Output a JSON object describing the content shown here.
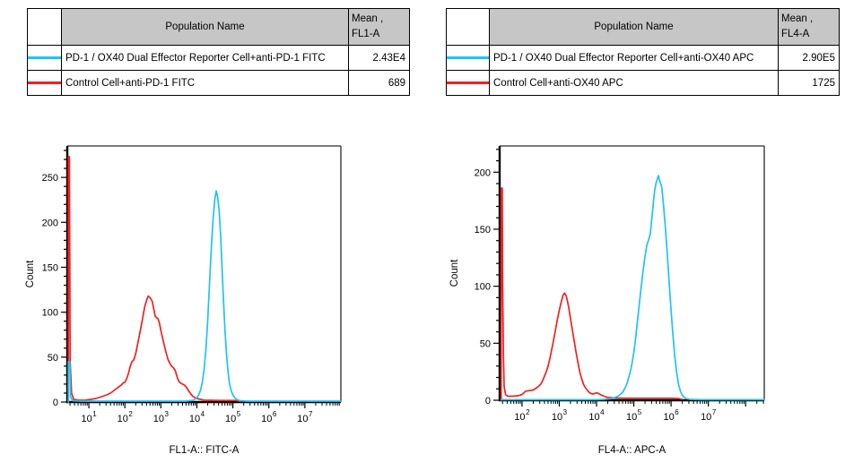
{
  "colors": {
    "reporter_series": "#1ec3f3",
    "control_series": "#f22020",
    "table_header_bg": "#c6c6c6",
    "axis": "#000000",
    "frame": "#2a2a2a"
  },
  "tables": [
    {
      "header": {
        "population": "Population Name",
        "mean_line1": "Mean ,",
        "mean_line2": "FL1-A"
      },
      "rows": [
        {
          "color": "#1ec3f3",
          "name": "PD-1 / OX40 Dual Effector Reporter Cell+anti-PD-1 FITC",
          "mean": "2.43E4"
        },
        {
          "color": "#f22020",
          "name": "Control Cell+anti-PD-1 FITC",
          "mean": "689"
        }
      ]
    },
    {
      "header": {
        "population": "Population Name",
        "mean_line1": "Mean ,",
        "mean_line2": "FL4-A"
      },
      "rows": [
        {
          "color": "#1ec3f3",
          "name": "PD-1 / OX40 Dual Effector Reporter Cell+anti-OX40 APC",
          "mean": "2.90E5"
        },
        {
          "color": "#f22020",
          "name": "Control Cell+anti-OX40 APC",
          "mean": "1725"
        }
      ]
    }
  ],
  "chart_data": [
    {
      "type": "line",
      "subtype": "flow-cytometry-histogram",
      "xlabel": "FL1-A:: FITC-A",
      "ylabel": "Count",
      "xscale": "log10",
      "xlim_log10": [
        0.4,
        8.0
      ],
      "ylim": [
        0,
        285
      ],
      "x_decade_labels": [
        1,
        2,
        3,
        4,
        5,
        6,
        7
      ],
      "yticks": [
        0,
        50,
        100,
        150,
        200,
        250
      ],
      "y_minor_step": 10,
      "grid": false,
      "legend": "table-above",
      "series": [
        {
          "name": "Control Cell+anti-PD-1 FITC",
          "color": "#f22020",
          "peak_log10x": 2.65,
          "peak_count": 118,
          "points_log10x_count": [
            [
              0.43,
              0
            ],
            [
              0.43,
              273
            ],
            [
              0.46,
              273
            ],
            [
              0.48,
              45
            ],
            [
              0.52,
              10
            ],
            [
              0.58,
              3
            ],
            [
              0.72,
              2
            ],
            [
              0.9,
              2
            ],
            [
              1.05,
              3
            ],
            [
              1.2,
              4
            ],
            [
              1.35,
              6
            ],
            [
              1.5,
              8
            ],
            [
              1.6,
              10
            ],
            [
              1.7,
              13
            ],
            [
              1.8,
              16
            ],
            [
              1.9,
              19
            ],
            [
              1.95,
              21
            ],
            [
              2.0,
              22
            ],
            [
              2.05,
              26
            ],
            [
              2.1,
              32
            ],
            [
              2.15,
              40
            ],
            [
              2.2,
              45
            ],
            [
              2.25,
              47
            ],
            [
              2.3,
              54
            ],
            [
              2.35,
              64
            ],
            [
              2.4,
              74
            ],
            [
              2.45,
              84
            ],
            [
              2.5,
              95
            ],
            [
              2.55,
              106
            ],
            [
              2.6,
              113
            ],
            [
              2.65,
              118
            ],
            [
              2.68,
              117
            ],
            [
              2.72,
              115
            ],
            [
              2.76,
              112
            ],
            [
              2.8,
              104
            ],
            [
              2.84,
              96
            ],
            [
              2.88,
              94
            ],
            [
              2.92,
              93
            ],
            [
              2.96,
              88
            ],
            [
              3.0,
              80
            ],
            [
              3.05,
              71
            ],
            [
              3.1,
              62
            ],
            [
              3.15,
              54
            ],
            [
              3.2,
              47
            ],
            [
              3.25,
              43
            ],
            [
              3.3,
              40
            ],
            [
              3.35,
              38
            ],
            [
              3.4,
              35
            ],
            [
              3.45,
              28
            ],
            [
              3.5,
              23
            ],
            [
              3.55,
              21
            ],
            [
              3.6,
              20
            ],
            [
              3.65,
              19
            ],
            [
              3.7,
              17
            ],
            [
              3.75,
              14
            ],
            [
              3.8,
              11
            ],
            [
              3.85,
              8
            ],
            [
              3.9,
              6
            ],
            [
              3.95,
              5
            ],
            [
              4.0,
              4
            ],
            [
              4.1,
              3
            ],
            [
              4.2,
              2.2
            ],
            [
              4.4,
              2
            ],
            [
              4.6,
              1.8
            ],
            [
              4.8,
              1.8
            ],
            [
              5.0,
              1.8
            ],
            [
              5.15,
              1.5
            ],
            [
              5.2,
              0.8
            ]
          ]
        },
        {
          "name": "PD-1 / OX40 Dual Effector Reporter Cell+anti-PD-1 FITC",
          "color": "#1ec3f3",
          "peak_log10x": 4.54,
          "peak_count": 235,
          "points_log10x_count": [
            [
              0.43,
              0
            ],
            [
              0.43,
              45
            ],
            [
              0.47,
              45
            ],
            [
              0.49,
              6
            ],
            [
              0.55,
              1.5
            ],
            [
              0.8,
              1
            ],
            [
              1.5,
              1
            ],
            [
              2.5,
              1
            ],
            [
              3.4,
              1
            ],
            [
              3.7,
              1
            ],
            [
              3.8,
              1.5
            ],
            [
              3.9,
              2
            ],
            [
              4.0,
              5
            ],
            [
              4.05,
              8
            ],
            [
              4.1,
              13
            ],
            [
              4.15,
              22
            ],
            [
              4.2,
              36
            ],
            [
              4.25,
              58
            ],
            [
              4.3,
              90
            ],
            [
              4.35,
              130
            ],
            [
              4.4,
              170
            ],
            [
              4.45,
              203
            ],
            [
              4.5,
              226
            ],
            [
              4.54,
              235
            ],
            [
              4.58,
              228
            ],
            [
              4.62,
              212
            ],
            [
              4.66,
              185
            ],
            [
              4.7,
              148
            ],
            [
              4.74,
              112
            ],
            [
              4.78,
              80
            ],
            [
              4.82,
              55
            ],
            [
              4.86,
              36
            ],
            [
              4.9,
              22
            ],
            [
              4.95,
              13
            ],
            [
              5.0,
              8
            ],
            [
              5.05,
              5
            ],
            [
              5.1,
              3
            ],
            [
              5.2,
              1.5
            ],
            [
              5.4,
              1
            ],
            [
              6.0,
              1
            ],
            [
              7.0,
              1
            ],
            [
              8.0,
              1
            ]
          ]
        }
      ]
    },
    {
      "type": "line",
      "subtype": "flow-cytometry-histogram",
      "xlabel": "FL4-A:: APC-A",
      "ylabel": "Count",
      "xscale": "log10",
      "xlim_log10": [
        1.4,
        8.5
      ],
      "ylim": [
        0,
        223
      ],
      "x_decade_labels": [
        2,
        3,
        4,
        5,
        6,
        7
      ],
      "yticks": [
        0,
        50,
        100,
        150,
        200
      ],
      "y_minor_step": 10,
      "grid": false,
      "legend": "table-above",
      "series": [
        {
          "name": "Control Cell+anti-OX40 APC",
          "color": "#f22020",
          "peak_log10x": 3.14,
          "peak_count": 94,
          "points_log10x_count": [
            [
              1.44,
              0
            ],
            [
              1.44,
              186
            ],
            [
              1.47,
              186
            ],
            [
              1.48,
              105
            ],
            [
              1.5,
              40
            ],
            [
              1.52,
              12
            ],
            [
              1.56,
              5
            ],
            [
              1.62,
              3.5
            ],
            [
              1.75,
              3.5
            ],
            [
              1.9,
              4
            ],
            [
              2.0,
              5
            ],
            [
              2.05,
              6.5
            ],
            [
              2.1,
              8
            ],
            [
              2.2,
              8.5
            ],
            [
              2.3,
              9
            ],
            [
              2.4,
              11
            ],
            [
              2.5,
              14
            ],
            [
              2.55,
              17
            ],
            [
              2.6,
              21
            ],
            [
              2.65,
              25
            ],
            [
              2.7,
              30
            ],
            [
              2.75,
              37
            ],
            [
              2.8,
              45
            ],
            [
              2.85,
              53
            ],
            [
              2.9,
              62
            ],
            [
              2.95,
              71
            ],
            [
              3.0,
              79
            ],
            [
              3.05,
              86
            ],
            [
              3.1,
              92
            ],
            [
              3.14,
              94
            ],
            [
              3.18,
              92
            ],
            [
              3.22,
              87
            ],
            [
              3.26,
              80
            ],
            [
              3.3,
              72
            ],
            [
              3.35,
              62
            ],
            [
              3.4,
              52
            ],
            [
              3.45,
              42
            ],
            [
              3.5,
              33
            ],
            [
              3.55,
              25
            ],
            [
              3.6,
              19
            ],
            [
              3.65,
              14
            ],
            [
              3.7,
              11
            ],
            [
              3.75,
              9
            ],
            [
              3.8,
              7
            ],
            [
              3.85,
              6
            ],
            [
              3.9,
              5.5
            ],
            [
              3.95,
              6
            ],
            [
              4.0,
              6.5
            ],
            [
              4.05,
              6
            ],
            [
              4.1,
              5
            ],
            [
              4.2,
              3.5
            ],
            [
              4.3,
              2.5
            ],
            [
              4.5,
              2
            ],
            [
              4.8,
              1.8
            ],
            [
              5.2,
              1.8
            ],
            [
              5.6,
              1.8
            ],
            [
              6.0,
              1.8
            ],
            [
              6.2,
              1.5
            ],
            [
              6.3,
              0.8
            ]
          ]
        },
        {
          "name": "PD-1 / OX40 Dual Effector Reporter Cell+anti-OX40 APC",
          "color": "#1ec3f3",
          "peak_log10x": 5.66,
          "peak_count": 197,
          "points_log10x_count": [
            [
              1.44,
              0.5
            ],
            [
              2.0,
              0.5
            ],
            [
              3.0,
              0.5
            ],
            [
              4.0,
              0.5
            ],
            [
              4.2,
              0.8
            ],
            [
              4.4,
              1.5
            ],
            [
              4.5,
              2.5
            ],
            [
              4.6,
              4
            ],
            [
              4.7,
              7
            ],
            [
              4.8,
              13
            ],
            [
              4.9,
              24
            ],
            [
              4.95,
              32
            ],
            [
              5.0,
              42
            ],
            [
              5.05,
              55
            ],
            [
              5.1,
              70
            ],
            [
              5.15,
              85
            ],
            [
              5.2,
              100
            ],
            [
              5.25,
              114
            ],
            [
              5.3,
              126
            ],
            [
              5.35,
              136
            ],
            [
              5.4,
              141
            ],
            [
              5.44,
              146
            ],
            [
              5.48,
              158
            ],
            [
              5.52,
              172
            ],
            [
              5.56,
              184
            ],
            [
              5.6,
              191
            ],
            [
              5.63,
              194
            ],
            [
              5.66,
              197
            ],
            [
              5.69,
              193
            ],
            [
              5.72,
              190
            ],
            [
              5.75,
              187
            ],
            [
              5.8,
              170
            ],
            [
              5.85,
              150
            ],
            [
              5.9,
              127
            ],
            [
              5.95,
              103
            ],
            [
              6.0,
              79
            ],
            [
              6.05,
              57
            ],
            [
              6.1,
              38
            ],
            [
              6.15,
              24
            ],
            [
              6.2,
              14
            ],
            [
              6.25,
              8
            ],
            [
              6.3,
              4.5
            ],
            [
              6.35,
              2.5
            ],
            [
              6.4,
              1.5
            ],
            [
              6.5,
              0.8
            ],
            [
              6.8,
              0.5
            ],
            [
              7.5,
              0.5
            ],
            [
              8.5,
              0.5
            ]
          ]
        }
      ]
    }
  ]
}
